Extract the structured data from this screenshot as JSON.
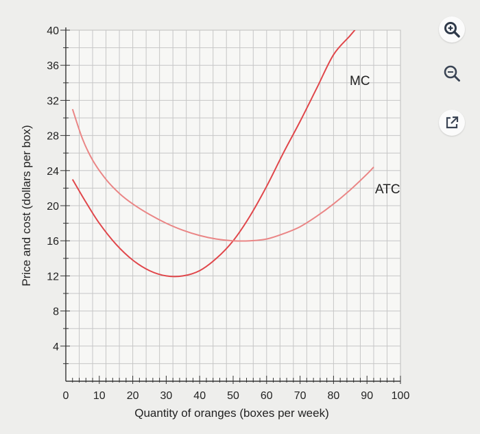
{
  "chart_data": {
    "type": "line",
    "xlabel": "Quantity of oranges (boxes per week)",
    "ylabel": "Price and cost (dollars per box)",
    "xlim": [
      0,
      100
    ],
    "ylim": [
      0,
      40
    ],
    "x_ticks": [
      "0",
      "10",
      "20",
      "30",
      "40",
      "50",
      "60",
      "70",
      "80",
      "90",
      "100"
    ],
    "y_ticks": [
      "4",
      "8",
      "12",
      "16",
      "20",
      "24",
      "28",
      "32",
      "36",
      "40"
    ],
    "grid": true,
    "series": [
      {
        "name": "MC",
        "color": "#e0464a",
        "x": [
          2,
          6,
          10,
          15,
          20,
          25,
          30,
          35,
          40,
          45,
          50,
          55,
          60,
          65,
          70,
          75,
          80,
          85,
          89
        ],
        "y": [
          23,
          20.4,
          18.0,
          15.6,
          13.8,
          12.6,
          12.0,
          12.0,
          12.6,
          14.0,
          16.0,
          18.8,
          22.2,
          26.0,
          29.6,
          33.4,
          37.2,
          39.4,
          41.2
        ]
      },
      {
        "name": "ATC",
        "color": "#ea8585",
        "x": [
          2,
          5,
          8,
          12,
          16,
          20,
          25,
          30,
          35,
          40,
          45,
          50,
          55,
          60,
          65,
          70,
          75,
          80,
          85,
          90,
          92
        ],
        "y": [
          31,
          27.6,
          25.2,
          23.0,
          21.4,
          20.2,
          19.0,
          18.0,
          17.2,
          16.6,
          16.2,
          16.0,
          16.0,
          16.2,
          16.8,
          17.6,
          18.8,
          20.2,
          21.8,
          23.6,
          24.4
        ]
      }
    ]
  },
  "labels": {
    "mc": "MC",
    "atc": "ATC"
  },
  "toolbar": {
    "zoom_in_icon": "zoom-in-icon",
    "zoom_out_icon": "zoom-out-icon",
    "popout_icon": "external-link-icon"
  }
}
